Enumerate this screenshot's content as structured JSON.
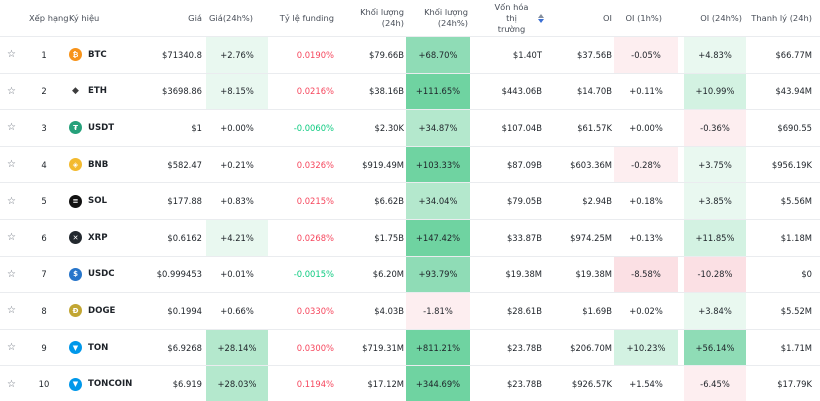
{
  "header": {
    "rank": "Xếp hạng",
    "symbol": "Ký hiệu",
    "price": "Giá",
    "price_change": "Giá(24h%)",
    "funding": "Tỷ lệ funding",
    "volume": "Khối lượng (24h)",
    "volume_change": "Khối lượng (24h%)",
    "market_cap_line1": "Vốn hóa thị",
    "market_cap_line2": "trường",
    "oi": "OI",
    "oi_1h": "OI (1h%)",
    "oi_24h": "OI (24h%)",
    "liquidation": "Thanh lý (24h)"
  },
  "colors": {
    "positive": "#0ecb81",
    "negative": "#f6465d"
  },
  "rows": [
    {
      "rank": "1",
      "symbol": "BTC",
      "icon": "btc-icon",
      "icon_glyph": "₿",
      "icon_color": "#f7931a",
      "price": "$71340.8",
      "price_change": "+2.76%",
      "pc_bg": "hl1",
      "funding": "0.0190%",
      "funding_color": "red",
      "volume": "$79.66B",
      "volume_change": "+68.70%",
      "vc_bg": "hl4",
      "market_cap": "$1.40T",
      "oi": "$37.56B",
      "oi_1h": "-0.05%",
      "o1_bg": "hr1",
      "oi_24h": "+4.83%",
      "o24_bg": "hl1",
      "liquidation": "$66.77M"
    },
    {
      "rank": "2",
      "symbol": "ETH",
      "icon": "eth-icon",
      "icon_glyph": "◆",
      "icon_color": "#ffffff",
      "price": "$3698.86",
      "price_change": "+8.15%",
      "pc_bg": "hl1",
      "funding": "0.0216%",
      "funding_color": "red",
      "volume": "$38.16B",
      "volume_change": "+111.65%",
      "vc_bg": "hl5",
      "market_cap": "$443.06B",
      "oi": "$14.70B",
      "oi_1h": "+0.11%",
      "o1_bg": "",
      "oi_24h": "+10.99%",
      "o24_bg": "hl2",
      "liquidation": "$43.94M"
    },
    {
      "rank": "3",
      "symbol": "USDT",
      "icon": "usdt-icon",
      "icon_glyph": "₮",
      "icon_color": "#26a17b",
      "price": "$1",
      "price_change": "+0.00%",
      "pc_bg": "",
      "funding": "-0.0060%",
      "funding_color": "green",
      "volume": "$2.30K",
      "volume_change": "+34.87%",
      "vc_bg": "hl3",
      "market_cap": "$107.04B",
      "oi": "$61.57K",
      "oi_1h": "+0.00%",
      "o1_bg": "",
      "oi_24h": "-0.36%",
      "o24_bg": "hr1",
      "liquidation": "$690.55"
    },
    {
      "rank": "4",
      "symbol": "BNB",
      "icon": "bnb-icon",
      "icon_glyph": "◈",
      "icon_color": "#f3ba2f",
      "price": "$582.47",
      "price_change": "+0.21%",
      "pc_bg": "",
      "funding": "0.0326%",
      "funding_color": "red",
      "volume": "$919.49M",
      "volume_change": "+103.33%",
      "vc_bg": "hl5",
      "market_cap": "$87.09B",
      "oi": "$603.36M",
      "oi_1h": "-0.28%",
      "o1_bg": "hr1",
      "oi_24h": "+3.75%",
      "o24_bg": "hl1",
      "liquidation": "$956.19K"
    },
    {
      "rank": "5",
      "symbol": "SOL",
      "icon": "sol-icon",
      "icon_glyph": "≡",
      "icon_color": "#111111",
      "price": "$177.88",
      "price_change": "+0.83%",
      "pc_bg": "",
      "funding": "0.0215%",
      "funding_color": "red",
      "volume": "$6.62B",
      "volume_change": "+34.04%",
      "vc_bg": "hl3",
      "market_cap": "$79.05B",
      "oi": "$2.94B",
      "oi_1h": "+0.18%",
      "o1_bg": "",
      "oi_24h": "+3.85%",
      "o24_bg": "hl1",
      "liquidation": "$5.56M"
    },
    {
      "rank": "6",
      "symbol": "XRP",
      "icon": "xrp-icon",
      "icon_glyph": "✕",
      "icon_color": "#23292f",
      "price": "$0.6162",
      "price_change": "+4.21%",
      "pc_bg": "hl1",
      "funding": "0.0268%",
      "funding_color": "red",
      "volume": "$1.75B",
      "volume_change": "+147.42%",
      "vc_bg": "hl5",
      "market_cap": "$33.87B",
      "oi": "$974.25M",
      "oi_1h": "+0.13%",
      "o1_bg": "",
      "oi_24h": "+11.85%",
      "o24_bg": "hl2",
      "liquidation": "$1.18M"
    },
    {
      "rank": "7",
      "symbol": "USDC",
      "icon": "usdc-icon",
      "icon_glyph": "$",
      "icon_color": "#2775ca",
      "price": "$0.999453",
      "price_change": "+0.01%",
      "pc_bg": "",
      "funding": "-0.0015%",
      "funding_color": "green",
      "volume": "$6.20M",
      "volume_change": "+93.79%",
      "vc_bg": "hl4",
      "market_cap": "$19.38M",
      "oi": "$19.38M",
      "oi_1h": "-8.58%",
      "o1_bg": "hr2",
      "oi_24h": "-10.28%",
      "o24_bg": "hr2",
      "liquidation": "$0"
    },
    {
      "rank": "8",
      "symbol": "DOGE",
      "icon": "doge-icon",
      "icon_glyph": "Ð",
      "icon_color": "#c2a633",
      "price": "$0.1994",
      "price_change": "+0.66%",
      "pc_bg": "",
      "funding": "0.0330%",
      "funding_color": "red",
      "volume": "$4.03B",
      "volume_change": "-1.81%",
      "vc_bg": "hr1",
      "market_cap": "$28.61B",
      "oi": "$1.69B",
      "oi_1h": "+0.02%",
      "o1_bg": "",
      "oi_24h": "+3.84%",
      "o24_bg": "hl1",
      "liquidation": "$5.52M"
    },
    {
      "rank": "9",
      "symbol": "TON",
      "icon": "ton-icon",
      "icon_glyph": "▼",
      "icon_color": "#0098ea",
      "price": "$6.9268",
      "price_change": "+28.14%",
      "pc_bg": "hl3",
      "funding": "0.0300%",
      "funding_color": "red",
      "volume": "$719.31M",
      "volume_change": "+811.21%",
      "vc_bg": "hl5",
      "market_cap": "$23.78B",
      "oi": "$206.70M",
      "oi_1h": "+10.23%",
      "o1_bg": "hl2",
      "oi_24h": "+56.14%",
      "o24_bg": "hl4",
      "liquidation": "$1.71M"
    },
    {
      "rank": "10",
      "symbol": "TONCOIN",
      "icon": "toncoin-icon",
      "icon_glyph": "▼",
      "icon_color": "#0098ea",
      "price": "$6.919",
      "price_change": "+28.03%",
      "pc_bg": "hl3",
      "funding": "0.1194%",
      "funding_color": "red",
      "volume": "$17.12M",
      "volume_change": "+344.69%",
      "vc_bg": "hl5",
      "market_cap": "$23.78B",
      "oi": "$926.57K",
      "oi_1h": "+1.54%",
      "o1_bg": "",
      "oi_24h": "-6.45%",
      "o24_bg": "hr1",
      "liquidation": "$17.79K"
    }
  ]
}
